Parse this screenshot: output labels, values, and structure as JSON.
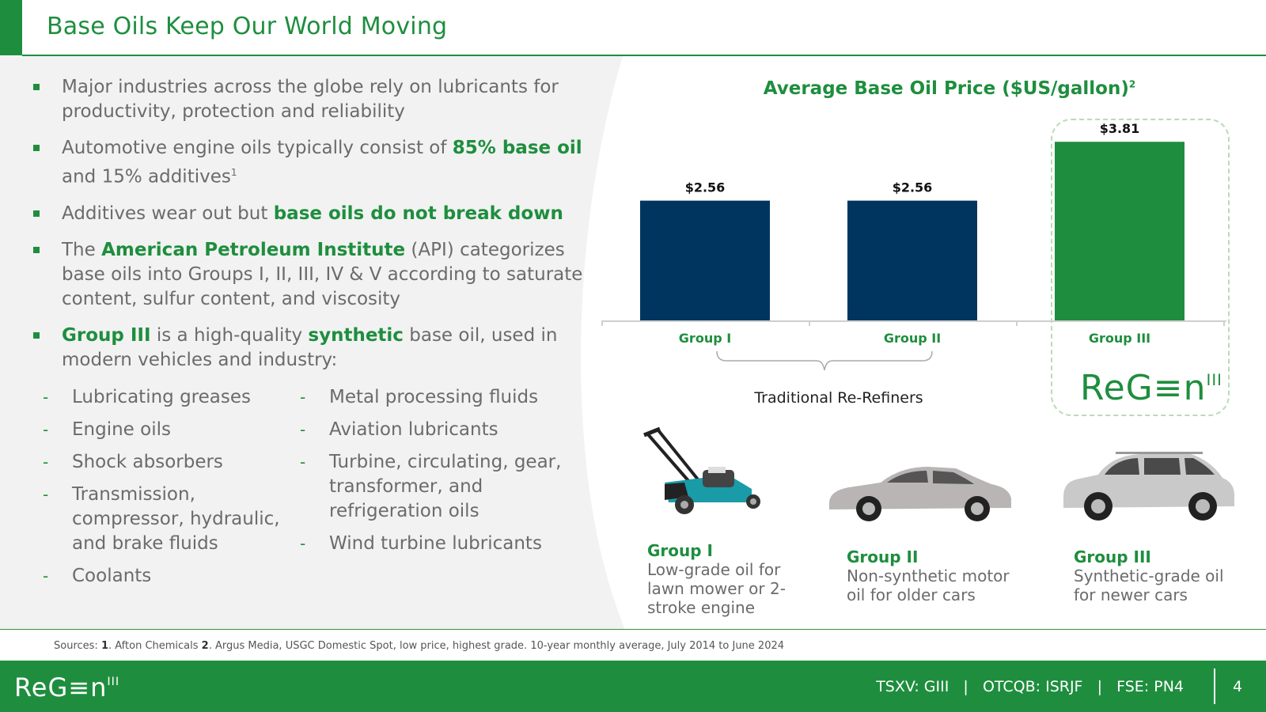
{
  "title": "Base Oils Keep Our World Moving",
  "bullets": [
    {
      "parts": [
        {
          "t": "Major industries across the globe rely on lubricants for productivity, protection and reliability"
        }
      ]
    },
    {
      "parts": [
        {
          "t": "Automotive engine oils typically consist of "
        },
        {
          "t": "85% base oil",
          "b": true
        },
        {
          "t": " and 15% additives"
        },
        {
          "t": "1",
          "sup": true
        }
      ]
    },
    {
      "parts": [
        {
          "t": "Additives wear out but "
        },
        {
          "t": "base oils do not break down",
          "b": true
        }
      ]
    },
    {
      "parts": [
        {
          "t": "The "
        },
        {
          "t": "American Petroleum Institute",
          "b": true
        },
        {
          "t": " (API) categorizes base oils into Groups I, II, III, IV & V according to saturate content, sulfur content, and viscosity"
        }
      ]
    },
    {
      "parts": [
        {
          "t": "Group III",
          "b": true
        },
        {
          "t": " is a high-quality "
        },
        {
          "t": "synthetic",
          "b": true
        },
        {
          "t": " base oil, used in modern vehicles and industry:"
        }
      ]
    }
  ],
  "uses_col1": [
    "Lubricating greases",
    "Engine oils",
    "Shock absorbers",
    "Transmission, compressor, hydraulic, and brake fluids",
    "Coolants"
  ],
  "uses_col2": [
    "Metal processing fluids",
    "Aviation lubricants",
    "Turbine, circulating, gear, transformer, and refrigeration oils",
    "Wind turbine lubricants"
  ],
  "dash": "-",
  "chart_title": "Average Base Oil Price ($US/gallon)",
  "chart_title_sup": "2",
  "chart_data": {
    "type": "bar",
    "title": "Average Base Oil Price ($US/gallon)",
    "categories": [
      "Group I",
      "Group II",
      "Group III"
    ],
    "values": [
      2.56,
      2.56,
      3.81
    ],
    "value_labels": [
      "$2.56",
      "$2.56",
      "$3.81"
    ],
    "colors": [
      "#00355f",
      "#00355f",
      "#1e8e3e"
    ],
    "ylim": [
      0,
      4.2
    ],
    "grid": false,
    "xlabel": "",
    "ylabel": ""
  },
  "bracket_label": "Traditional Re-Refiners",
  "logo": {
    "text": "ReG≡n",
    "sup": "III"
  },
  "groups": [
    {
      "head": "Group I",
      "desc": "Low-grade oil for lawn mower or 2-stroke engine",
      "image": "lawn-mower"
    },
    {
      "head": "Group II",
      "desc": "Non-synthetic motor oil for older cars",
      "image": "sedan-car"
    },
    {
      "head": "Group III",
      "desc": "Synthetic-grade oil for newer cars",
      "image": "suv-car"
    }
  ],
  "sources": {
    "label": "Sources: ",
    "n1": "1",
    "s1": ". Afton Chemicals ",
    "n2": "2",
    "s2": ". Argus Media, USGC Domestic Spot, low price, highest grade. 10-year monthly average, July 2014 to June 2024"
  },
  "footer": {
    "tickers": "TSXV: GIII   |   OTCQB: ISRJF   |   FSE: PN4",
    "page": "4"
  },
  "colors": {
    "green": "#1e8e3e",
    "navy": "#00355f",
    "panel": "#f2f2f2"
  }
}
